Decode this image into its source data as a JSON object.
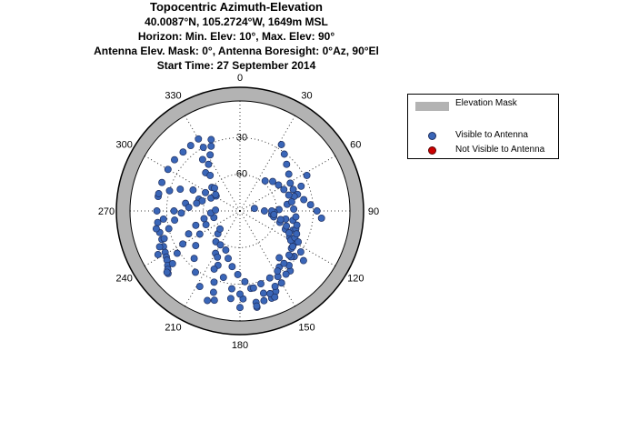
{
  "title_lines": [
    "Topocentric Azimuth-Elevation",
    "40.0087°N, 105.2724°W, 1649m MSL",
    "Horizon:  Min. Elev: 10°,  Max. Elev: 90°",
    "Antenna Elev. Mask: 0°,  Antenna Boresight: 0°Az, 90°El",
    "Start Time: 27 September 2014"
  ],
  "legend": {
    "mask_label": "Elevation Mask",
    "visible_label": "Visible to Antenna",
    "not_visible_label": "Not Visible to Antenna"
  },
  "colors": {
    "mask": "#b3b3b3",
    "visible": "#3a66b8",
    "visible_edge": "#1f2f5f",
    "not_visible": "#cc0000",
    "grid": "#000000"
  },
  "chart_data": {
    "type": "scatter",
    "projection": "polar-azimuth-elevation",
    "azimuth_ticks": [
      "0",
      "30",
      "60",
      "90",
      "120",
      "150",
      "180",
      "210",
      "240",
      "270",
      "300",
      "330"
    ],
    "elevation_ticks": [
      "30",
      "60"
    ],
    "min_elevation": 10,
    "max_elevation": 90,
    "grid": true,
    "legend_position": "top-right",
    "series": [
      {
        "name": "Visible to Antenna",
        "tracks": [
          {
            "az": [
              330,
              323,
              316,
              308,
              300,
              290,
              280,
              270,
              262,
              255,
              250,
              245,
              241,
              238,
              236,
              233,
              231,
              229
            ],
            "el": [
              22,
              23,
              23,
              22,
              22,
              22,
              22,
              22,
              22,
              22,
              22,
              21,
              20,
              19,
              18,
              16,
              14,
              12
            ]
          },
          {
            "az": [
              32,
              38,
              45,
              53,
              61,
              68,
              74,
              80,
              85,
              90,
              95
            ],
            "el": [
              26,
              31,
              36,
              40,
              43,
              43,
              41,
              37,
              32,
              27,
              23
            ]
          },
          {
            "az": [
              62,
              68,
              75,
              82,
              88,
              92,
              96,
              100,
              106,
              112,
              118,
              124,
              130
            ],
            "el": [
              28,
              36,
              44,
              51,
              58,
              62,
              64,
              62,
              56,
              50,
              44,
              38,
              32
            ]
          },
          {
            "az": [
              258,
              264,
              270,
              278,
              286,
              294,
              302,
              310,
              318,
              324,
              330
            ],
            "el": [
              20,
              27,
              36,
              45,
              55,
              64,
              67,
              60,
              48,
              38,
              30
            ]
          },
          {
            "az": [
              282,
              286,
              290,
              294,
              298,
              304,
              312,
              320,
              326,
              332,
              336,
              338
            ],
            "el": [
              22,
              30,
              38,
              48,
              58,
              66,
              62,
              52,
              44,
              38,
              32,
              27
            ]
          },
          {
            "az": [
              285,
              280,
              274,
              268,
              262,
              256,
              250,
              246,
              242
            ],
            "el": [
              58,
              54,
              48,
              42,
              36,
              30,
              24,
              18,
              14
            ]
          },
          {
            "az": [
              80,
              90,
              100,
              110,
              120,
              130,
              140,
              150,
              160,
              170,
              180
            ],
            "el": [
              78,
              64,
              52,
              44,
              38,
              32,
              26,
              22,
              18,
              14,
              11
            ]
          },
          {
            "az": [
              170,
              178,
              186,
              194,
              202,
              210,
              218,
              224,
              228
            ],
            "el": [
              10,
              18,
              26,
              34,
              42,
              50,
              58,
              64,
              68
            ]
          },
          {
            "az": [
              200,
              208,
              216,
              224,
              232,
              240,
              248,
              256
            ],
            "el": [
              12,
              20,
              28,
              36,
              44,
              52,
              60,
              68
            ]
          },
          {
            "az": [
              230,
              232,
              236,
              240,
              246,
              252,
              258,
              266,
              272
            ],
            "el": [
              12,
              20,
              28,
              36,
              44,
              52,
              60,
              66,
              70
            ]
          },
          {
            "az": [
              196,
              198,
              200,
              204,
              206,
              210
            ],
            "el": [
              14,
              20,
              28,
              38,
              48,
              58
            ]
          },
          {
            "az": [
              90,
              96,
              102,
              108,
              114,
              120,
              126,
              132,
              138,
              144,
              150,
              156,
              160
            ],
            "el": [
              70,
              62,
              56,
              50,
              46,
              42,
              38,
              34,
              30,
              26,
              22,
              18,
              14
            ]
          },
          {
            "az": [
              140,
              145,
              150,
              155,
              160,
              165,
              170
            ],
            "el": [
              40,
              34,
              28,
              22,
              18,
              14,
              11
            ]
          },
          {
            "az": [
              100,
              108,
              116,
              124,
              132,
              140,
              148,
              156,
              164,
              172,
              180,
              186
            ],
            "el": [
              46,
              42,
              40,
              38,
              36,
              34,
              32,
              30,
              28,
              26,
              22,
              18
            ]
          },
          {
            "az": [
              200,
              194,
              188,
              182,
              176,
              170,
              164,
              158
            ],
            "el": [
              56,
              50,
              44,
              38,
              32,
              26,
              20,
              14
            ]
          },
          {
            "az": [
              40,
              48,
              56,
              64,
              72,
              80,
              88,
              96,
              104,
              112,
              118,
              124,
              128
            ],
            "el": [
              58,
              54,
              52,
              50,
              48,
              47,
              46,
              44,
              42,
              40,
              36,
              30,
              24
            ]
          }
        ]
      },
      {
        "name": "Not Visible to Antenna",
        "tracks": []
      }
    ]
  }
}
